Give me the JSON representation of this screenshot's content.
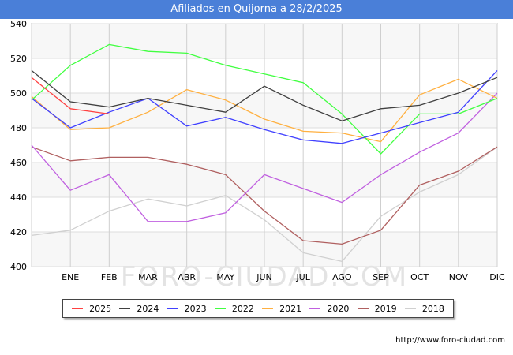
{
  "header": {
    "title": "Afiliados en Quijorna a 28/2/2025"
  },
  "watermark": "FORO-CIUDAD.COM",
  "footer": {
    "source": "http://www.foro-ciudad.com"
  },
  "chart_data": {
    "type": "line",
    "title": "Afiliados en Quijorna a 28/2/2025",
    "xlabel": "",
    "ylabel": "",
    "categories": [
      "",
      "ENE",
      "FEB",
      "MAR",
      "ABR",
      "MAY",
      "JUN",
      "JUL",
      "AGO",
      "SEP",
      "OCT",
      "NOV",
      "DIC"
    ],
    "ylim": [
      400,
      540
    ],
    "yticks": [
      400,
      420,
      440,
      460,
      480,
      500,
      520,
      540
    ],
    "grid": true,
    "legend_position": "bottom",
    "series": [
      {
        "name": "2025",
        "color": "#ff4040",
        "values": [
          509,
          491,
          488,
          null,
          null,
          null,
          null,
          null,
          null,
          null,
          null,
          null,
          null
        ]
      },
      {
        "name": "2024",
        "color": "#404040",
        "values": [
          513,
          495,
          492,
          497,
          493,
          489,
          504,
          493,
          484,
          491,
          493,
          500,
          509
        ]
      },
      {
        "name": "2023",
        "color": "#4040ff",
        "values": [
          497,
          480,
          489,
          497,
          481,
          486,
          479,
          473,
          471,
          477,
          483,
          489,
          513
        ]
      },
      {
        "name": "2022",
        "color": "#40ff40",
        "values": [
          496,
          516,
          528,
          524,
          523,
          516,
          511,
          506,
          488,
          465,
          488,
          488,
          497
        ]
      },
      {
        "name": "2021",
        "color": "#ffb040",
        "values": [
          498,
          479,
          480,
          489,
          502,
          496,
          485,
          478,
          477,
          472,
          499,
          508,
          497
        ]
      },
      {
        "name": "2020",
        "color": "#c060e0",
        "values": [
          470,
          444,
          453,
          426,
          426,
          431,
          453,
          445,
          437,
          453,
          466,
          477,
          500
        ]
      },
      {
        "name": "2019",
        "color": "#b06060",
        "values": [
          469,
          461,
          463,
          463,
          459,
          453,
          432,
          415,
          413,
          421,
          447,
          455,
          469
        ]
      },
      {
        "name": "2018",
        "color": "#d0d0d0",
        "values": [
          418,
          421,
          432,
          439,
          435,
          441,
          427,
          408,
          403,
          429,
          443,
          453,
          469
        ]
      }
    ]
  }
}
